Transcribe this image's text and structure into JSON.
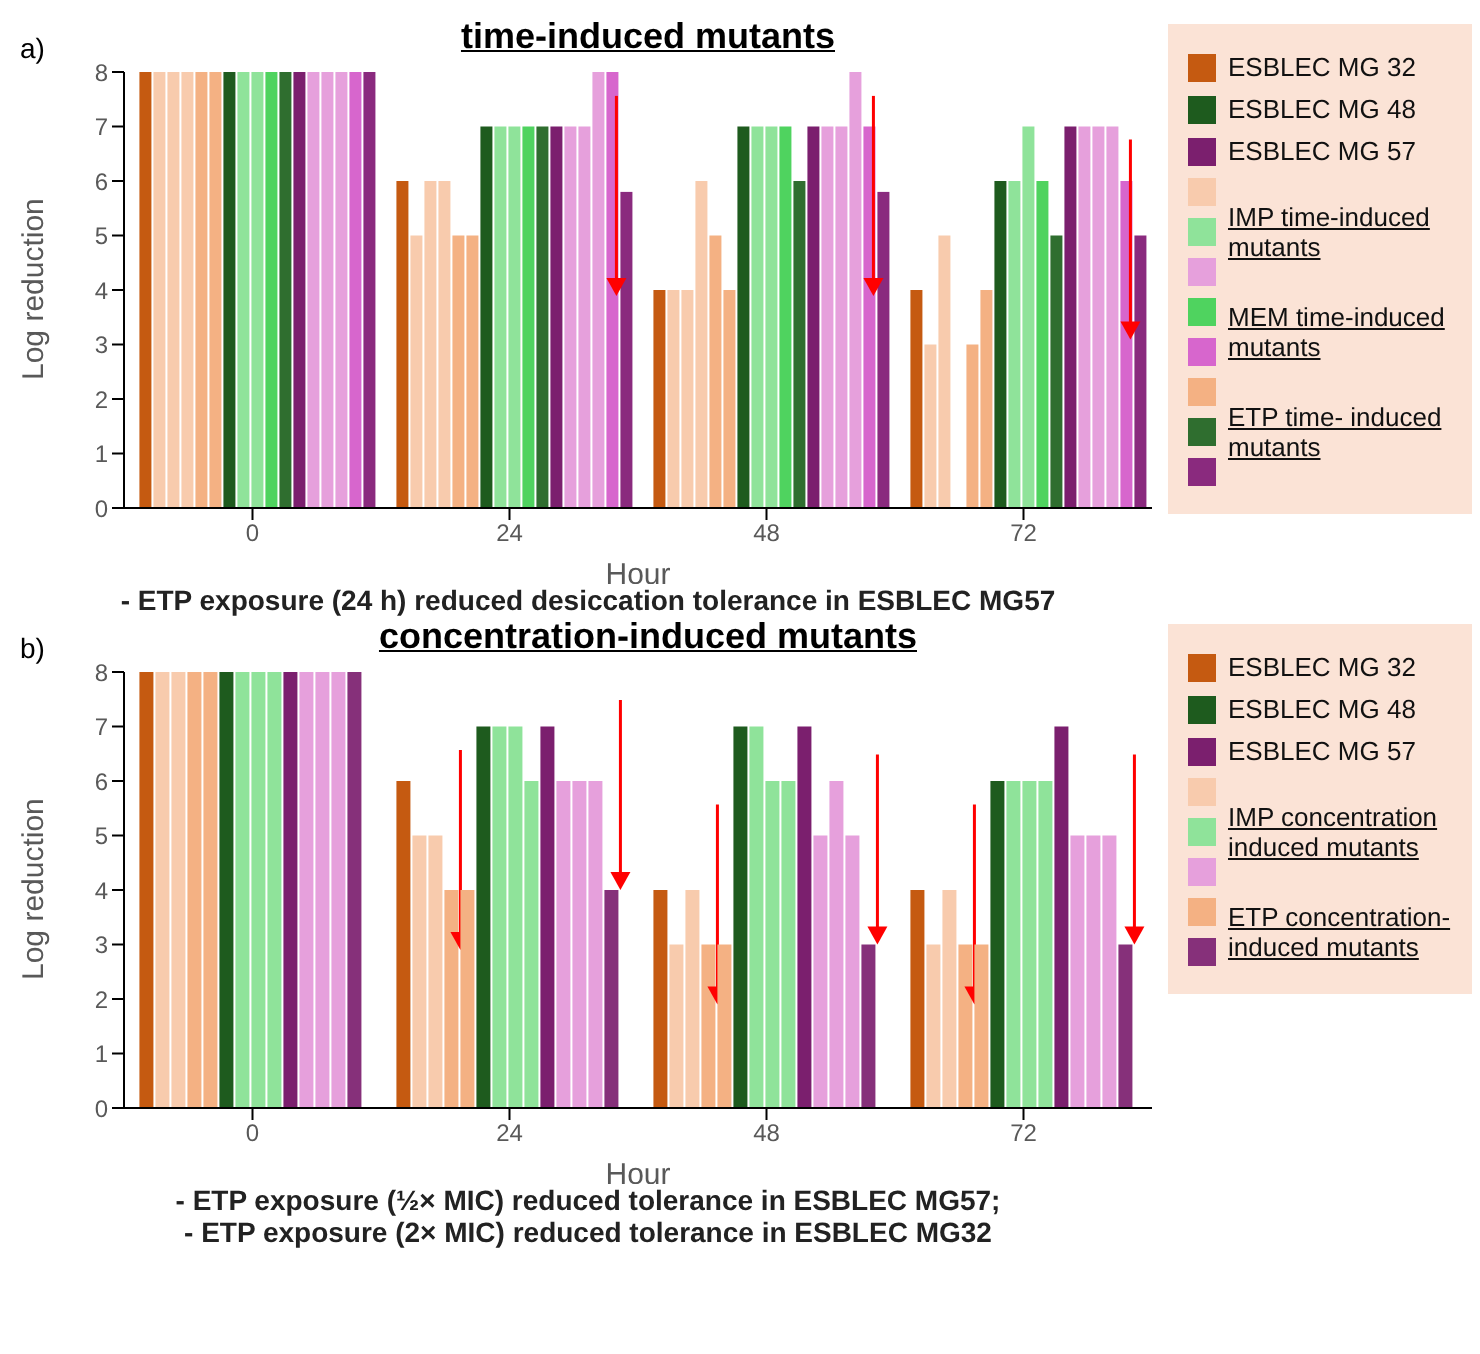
{
  "chart_data": [
    {
      "type": "bar",
      "title": "time-induced mutants",
      "xlabel": "Hour",
      "ylabel": "Log reduction",
      "categories": [
        "0",
        "24",
        "48",
        "72"
      ],
      "ylim": [
        0,
        8
      ],
      "yticks": [
        0,
        1,
        2,
        3,
        4,
        5,
        6,
        7,
        8
      ],
      "legend": "right",
      "annotations": [
        "a)",
        "- ETP exposure (24 h) reduced desiccation tolerance in ESBLEC MG57"
      ],
      "series": [
        {
          "name": "ESBLEC MG 32",
          "color": "#c55a11",
          "values": [
            8,
            6,
            4,
            4
          ]
        },
        {
          "color": "#f8cbad",
          "values": [
            8,
            5,
            4,
            3
          ]
        },
        {
          "color": "#f8cbad",
          "values": [
            8,
            6,
            4,
            5
          ]
        },
        {
          "color": "#f8cbad",
          "values": [
            8,
            6,
            6,
            null
          ]
        },
        {
          "color": "#f4b183",
          "values": [
            8,
            5,
            5,
            3
          ]
        },
        {
          "color": "#f4b183",
          "values": [
            8,
            5,
            4,
            4
          ]
        },
        {
          "name": "ESBLEC MG 48",
          "color": "#1e5b1e",
          "values": [
            8,
            7,
            7,
            6
          ]
        },
        {
          "name": "IMP time-induced mutants",
          "color": "#8fe39a",
          "values": [
            8,
            7,
            7,
            6
          ]
        },
        {
          "color": "#8fe39a",
          "values": [
            8,
            7,
            7,
            7
          ]
        },
        {
          "name": "MEM time-induced mutants",
          "color": "#4fd35f",
          "values": [
            8,
            7,
            7,
            6
          ]
        },
        {
          "name": "ETP time- induced mutants",
          "color": "#2f6e2f",
          "values": [
            8,
            7,
            6,
            5
          ]
        },
        {
          "name": "ESBLEC MG 57",
          "color": "#7b1f6e",
          "values": [
            8,
            7,
            7,
            7
          ]
        },
        {
          "color": "#e6a0dc",
          "values": [
            8,
            7,
            7,
            7
          ]
        },
        {
          "color": "#e6a0dc",
          "values": [
            8,
            7,
            7,
            7
          ]
        },
        {
          "color": "#e6a0dc",
          "values": [
            8,
            8,
            8,
            7
          ]
        },
        {
          "color": "#d766cd",
          "values": [
            8,
            8,
            7,
            6
          ]
        },
        {
          "color": "#8a2a7e",
          "values": [
            8,
            5.8,
            5.8,
            5
          ]
        }
      ]
    },
    {
      "type": "bar",
      "title": "concentration-induced mutants",
      "xlabel": "Hour",
      "ylabel": "Log reduction",
      "categories": [
        "0",
        "24",
        "48",
        "72"
      ],
      "ylim": [
        0,
        8
      ],
      "yticks": [
        0,
        1,
        2,
        3,
        4,
        5,
        6,
        7,
        8
      ],
      "legend": "right",
      "annotations": [
        "b)",
        "- ETP exposure (½× MIC) reduced tolerance in ESBLEC MG57;",
        "- ETP exposure (2× MIC) reduced tolerance in ESBLEC MG32"
      ],
      "series": [
        {
          "name": "ESBLEC MG 32",
          "color": "#c55a11",
          "values": [
            8,
            6,
            4,
            4
          ]
        },
        {
          "color": "#f8cbad",
          "values": [
            8,
            5,
            3,
            3
          ]
        },
        {
          "color": "#f8cbad",
          "values": [
            8,
            5,
            4,
            4
          ]
        },
        {
          "name": "ETP concentration-induced mutants",
          "color": "#f4b183",
          "values": [
            8,
            4,
            3,
            3
          ]
        },
        {
          "color": "#f4b183",
          "values": [
            8,
            4,
            3,
            3
          ]
        },
        {
          "name": "ESBLEC MG 48",
          "color": "#1e5b1e",
          "values": [
            8,
            7,
            7,
            6
          ]
        },
        {
          "name": "IMP concentration induced mutants",
          "color": "#8fe39a",
          "values": [
            8,
            7,
            7,
            6
          ]
        },
        {
          "color": "#8fe39a",
          "values": [
            8,
            7,
            6,
            6
          ]
        },
        {
          "color": "#8fe39a",
          "values": [
            8,
            6,
            6,
            6
          ]
        },
        {
          "name": "ESBLEC MG 57",
          "color": "#7b1f6e",
          "values": [
            8,
            7,
            7,
            7
          ]
        },
        {
          "color": "#e6a0dc",
          "values": [
            8,
            6,
            5,
            5
          ]
        },
        {
          "color": "#e6a0dc",
          "values": [
            8,
            6,
            6,
            5
          ]
        },
        {
          "color": "#e6a0dc",
          "values": [
            8,
            6,
            5,
            5
          ]
        },
        {
          "color": "#86307a",
          "values": [
            8,
            4,
            3,
            3
          ]
        }
      ]
    }
  ]
}
